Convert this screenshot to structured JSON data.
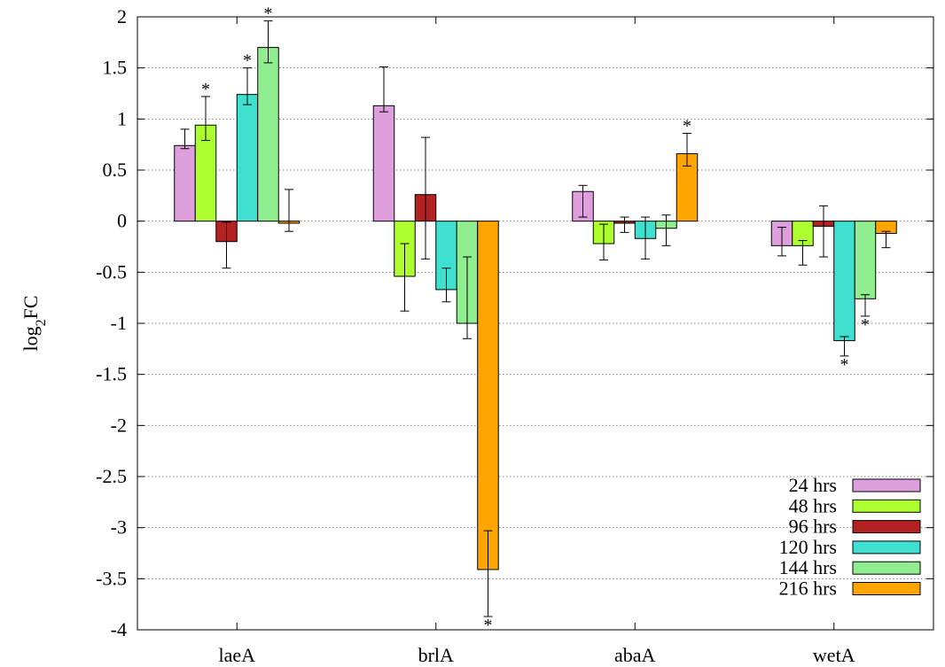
{
  "chart_data": {
    "type": "bar",
    "ylabel": "log2FC",
    "ylabel_main": "log",
    "ylabel_sub": "2",
    "ylabel_tail": "FC",
    "ylim": [
      -4,
      2
    ],
    "yticks": [
      2,
      1.5,
      1,
      0.5,
      0,
      -0.5,
      -1,
      -1.5,
      -2,
      -2.5,
      -3,
      -3.5,
      -4
    ],
    "ytick_labels": [
      "2",
      "1.5",
      "1",
      "0.5",
      "0",
      "-0.5",
      "-1",
      "-1.5",
      "-2",
      "-2.5",
      "-3",
      "-3.5",
      "-4"
    ],
    "grid": "dotted horizontal",
    "legend_position": "bottom-right",
    "categories": [
      "laeA",
      "brlA",
      "abaA",
      "wetA"
    ],
    "series": [
      {
        "name": "24 hrs",
        "color": "#dda0dd",
        "values": [
          0.74,
          1.13,
          0.29,
          -0.24
        ],
        "err_low": [
          0.71,
          1.07,
          0.04,
          -0.34
        ],
        "err_high": [
          0.9,
          1.51,
          0.35,
          -0.06
        ],
        "sig": [
          false,
          false,
          false,
          false
        ]
      },
      {
        "name": "48 hrs",
        "color": "#adff2f",
        "values": [
          0.94,
          -0.54,
          -0.22,
          -0.24
        ],
        "err_low": [
          0.79,
          -0.88,
          -0.38,
          -0.43
        ],
        "err_high": [
          1.22,
          -0.22,
          -0.03,
          -0.19
        ],
        "sig": [
          true,
          false,
          false,
          false
        ]
      },
      {
        "name": "96 hrs",
        "color": "#b22222",
        "values": [
          -0.2,
          0.26,
          -0.02,
          -0.05
        ],
        "err_low": [
          -0.46,
          -0.37,
          -0.11,
          -0.35
        ],
        "err_high": [
          -0.01,
          0.82,
          0.04,
          0.15
        ],
        "sig": [
          false,
          false,
          false,
          false
        ]
      },
      {
        "name": "120 hrs",
        "color": "#40e0d0",
        "values": [
          1.24,
          -0.67,
          -0.17,
          -1.17
        ],
        "err_low": [
          1.14,
          -0.79,
          -0.37,
          -1.32
        ],
        "err_high": [
          1.5,
          -0.46,
          0.04,
          -1.13
        ],
        "sig": [
          true,
          false,
          false,
          true
        ]
      },
      {
        "name": "144 hrs",
        "color": "#90ee90",
        "values": [
          1.7,
          -1.0,
          -0.07,
          -0.76
        ],
        "err_low": [
          1.55,
          -1.15,
          -0.24,
          -0.93
        ],
        "err_high": [
          1.96,
          -0.35,
          0.06,
          -0.72
        ],
        "sig": [
          true,
          false,
          false,
          true
        ]
      },
      {
        "name": "216 hrs",
        "color": "#ffa500",
        "values": [
          -0.02,
          -3.41,
          0.66,
          -0.12
        ],
        "err_low": [
          -0.1,
          -3.87,
          0.54,
          -0.26
        ],
        "err_high": [
          0.31,
          -3.03,
          0.86,
          -0.1
        ],
        "sig": [
          false,
          true,
          true,
          false
        ]
      }
    ],
    "significance_marker": "*"
  }
}
